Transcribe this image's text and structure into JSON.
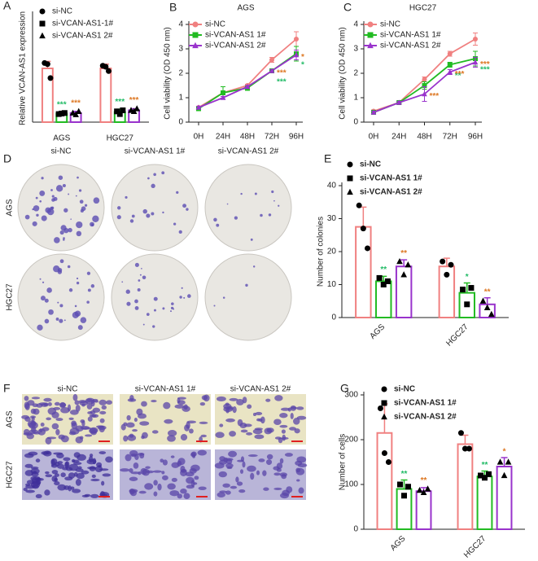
{
  "chart_data": [
    {
      "type": "bar",
      "panel": "A",
      "ylabel": "Relative VCAN-AS1 expression",
      "categories": [
        "AGS",
        "HGC27"
      ],
      "ylim": [
        0,
        2
      ],
      "series": [
        {
          "name": "si-NC",
          "color": "#f08080",
          "marker": "circle",
          "values": [
            1.0,
            1.0
          ],
          "errors": [
            0.13,
            0.08
          ],
          "points": [
            [
              1.1,
              1.08,
              0.82
            ],
            [
              1.05,
              1.03,
              0.95
            ]
          ]
        },
        {
          "name": "si-VCAN-AS1-1#",
          "color": "#22bb22",
          "marker": "square",
          "values": [
            0.16,
            0.19
          ],
          "errors": [
            0.02,
            0.05
          ],
          "points": [
            [
              0.15,
              0.16,
              0.17
            ],
            [
              0.2,
              0.15,
              0.22
            ]
          ],
          "annotations": [
            "***",
            "***"
          ],
          "annotation_color": "#22bb66"
        },
        {
          "name": "si-VCAN-AS1 2#",
          "color": "#9933cc",
          "marker": "triangle",
          "values": [
            0.17,
            0.22
          ],
          "errors": [
            0.03,
            0.03
          ],
          "points": [
            [
              0.17,
              0.14,
              0.2
            ],
            [
              0.22,
              0.2,
              0.25
            ]
          ],
          "annotations": [
            "***",
            "***"
          ],
          "annotation_color": "#dd7722"
        }
      ]
    },
    {
      "type": "line",
      "panel": "B",
      "title": "AGS",
      "ylabel": "Cell viability (OD 450 nm)",
      "categories": [
        "0H",
        "24H",
        "48H",
        "72H",
        "96H"
      ],
      "ylim": [
        0,
        4
      ],
      "yticks": [
        0,
        1,
        2,
        3,
        4
      ],
      "series": [
        {
          "name": "si-NC",
          "color": "#f08080",
          "marker": "circle",
          "values": [
            0.6,
            1.2,
            1.5,
            2.55,
            3.4
          ],
          "errors": [
            0.05,
            0.05,
            0.05,
            0.1,
            0.3
          ]
        },
        {
          "name": "si-VCAN-AS1 1#",
          "color": "#22bb22",
          "marker": "square",
          "values": [
            0.55,
            1.2,
            1.4,
            2.1,
            2.8
          ],
          "errors": [
            0.05,
            0.25,
            0.1,
            0.05,
            0.3
          ],
          "annotations": [
            null,
            null,
            null,
            "***",
            "*"
          ],
          "annotation_color": "#22bb66"
        },
        {
          "name": "si-VCAN-AS1 2#",
          "color": "#9933cc",
          "marker": "triangle",
          "values": [
            0.6,
            1.0,
            1.45,
            2.1,
            2.75
          ],
          "errors": [
            0.05,
            0.05,
            0.05,
            0.05,
            0.2
          ],
          "annotations": [
            null,
            null,
            null,
            "***",
            "*"
          ],
          "annotation_color": "#dd7722"
        }
      ]
    },
    {
      "type": "line",
      "panel": "C",
      "title": "HGC27",
      "ylabel": "Cell viability (OD 450 nm)",
      "categories": [
        "0H",
        "24H",
        "48H",
        "72H",
        "96H"
      ],
      "ylim": [
        0,
        4
      ],
      "yticks": [
        0,
        1,
        2,
        3,
        4
      ],
      "series": [
        {
          "name": "si-NC",
          "color": "#f08080",
          "marker": "circle",
          "values": [
            0.45,
            0.8,
            1.75,
            2.8,
            3.4
          ],
          "errors": [
            0.05,
            0.05,
            0.1,
            0.1,
            0.25
          ]
        },
        {
          "name": "si-VCAN-AS1 1#",
          "color": "#22bb22",
          "marker": "square",
          "values": [
            0.4,
            0.8,
            1.5,
            2.35,
            2.6
          ],
          "errors": [
            0.05,
            0.05,
            0.15,
            0.1,
            0.3
          ],
          "annotations": [
            null,
            null,
            null,
            "**",
            "***"
          ],
          "annotation_color": "#22bb66"
        },
        {
          "name": "si-VCAN-AS1 2#",
          "color": "#9933cc",
          "marker": "triangle",
          "values": [
            0.4,
            0.8,
            1.15,
            2.05,
            2.45
          ],
          "errors": [
            0.05,
            0.05,
            0.3,
            0.1,
            0.2
          ],
          "annotations": [
            null,
            null,
            "***",
            "***",
            "***"
          ],
          "annotation_color": "#dd7722"
        }
      ]
    },
    {
      "type": "bar",
      "panel": "E",
      "ylabel": "Number of colonies",
      "categories": [
        "AGS",
        "HGC27"
      ],
      "ylim": [
        0,
        40
      ],
      "yticks": [
        0,
        10,
        20,
        30,
        40
      ],
      "series": [
        {
          "name": "si-NC",
          "color": "#f08080",
          "marker": "circle",
          "values": [
            27.5,
            15.5
          ],
          "errors": [
            6,
            2.5
          ],
          "points": [
            [
              34,
              27,
              21
            ],
            [
              17,
              13,
              16
            ]
          ]
        },
        {
          "name": "si-VCAN-AS1 1#",
          "color": "#22bb22",
          "marker": "square",
          "values": [
            11,
            7.5
          ],
          "errors": [
            1.5,
            3
          ],
          "points": [
            [
              12,
              10,
              11
            ],
            [
              8.5,
              4,
              9
            ]
          ],
          "annotations": [
            "**",
            "*"
          ],
          "annotation_color": "#22bb66"
        },
        {
          "name": "si-VCAN-AS1 2#",
          "color": "#9933cc",
          "marker": "triangle",
          "values": [
            15.5,
            4
          ],
          "errors": [
            2,
            2
          ],
          "points": [
            [
              17,
              13,
              16
            ],
            [
              5,
              3,
              1
            ]
          ],
          "annotations": [
            "**",
            "**"
          ],
          "annotation_color": "#dd7722"
        }
      ]
    },
    {
      "type": "bar",
      "panel": "G",
      "ylabel": "Number of cells",
      "categories": [
        "AGS",
        "HGC27"
      ],
      "ylim": [
        0,
        300
      ],
      "yticks": [
        0,
        100,
        200,
        300
      ],
      "series": [
        {
          "name": "si-NC",
          "color": "#f08080",
          "marker": "circle",
          "values": [
            215,
            190
          ],
          "errors": [
            65,
            20
          ],
          "points": [
            [
              270,
              170,
              150
            ],
            [
              215,
              180,
              180
            ]
          ]
        },
        {
          "name": "si-VCAN-AS1 1#",
          "color": "#22bb22",
          "marker": "square",
          "values": [
            90,
            118
          ],
          "errors": [
            20,
            12
          ],
          "points": [
            [
              100,
              75,
              95
            ],
            [
              120,
              115,
              123
            ]
          ],
          "annotations": [
            "**",
            "**"
          ],
          "annotation_color": "#22bb66"
        },
        {
          "name": "si-VCAN-AS1 2#",
          "color": "#9933cc",
          "marker": "triangle",
          "values": [
            85,
            140
          ],
          "errors": [
            8,
            20
          ],
          "points": [
            [
              87,
              82,
              90
            ],
            [
              150,
              120,
              150
            ]
          ],
          "annotations": [
            "**",
            "*"
          ],
          "annotation_color": "#dd7722"
        }
      ]
    }
  ],
  "image_panels": [
    {
      "panel": "D",
      "columns": [
        "si-NC",
        "si-VCAN-AS1 1#",
        "si-VCAN-AS1 2#"
      ],
      "rows": [
        "AGS",
        "HGC27"
      ]
    },
    {
      "panel": "F",
      "columns": [
        "si-NC",
        "si-VCAN-AS1 1#",
        "si-VCAN-AS1 2#"
      ],
      "rows": [
        "AGS",
        "HGC27"
      ]
    }
  ]
}
